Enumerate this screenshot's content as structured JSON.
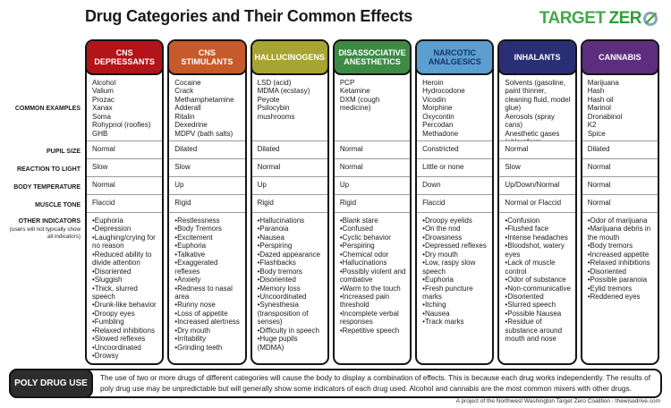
{
  "title": "Drug Categories and Their Common Effects",
  "logo": {
    "part1": "TARGET",
    "part2": "ZER",
    "icon": "target-zero-o-icon",
    "green": "#43a948"
  },
  "row_labels": {
    "examples": "COMMON EXAMPLES",
    "pupil": "PUPIL SIZE",
    "reaction": "REACTION TO LIGHT",
    "temperature": "BODY TEMPERATURE",
    "muscle": "MUSCLE TONE",
    "other": "OTHER INDICATORS",
    "other_note": "(users will not typically show all indicators)"
  },
  "columns": [
    {
      "name": "CNS DEPRESSANTS",
      "header_bg": "#b11419",
      "header_color": "#ffffff",
      "examples": [
        "Alcohol",
        "Valium",
        "Prozac",
        "Xanax",
        "Soma",
        "Rohypnol (roofies)",
        "GHB"
      ],
      "pupil": "Normal",
      "reaction": "Slow",
      "temperature": "Normal",
      "muscle": "Flaccid",
      "indicators": [
        "Euphoria",
        "Depression",
        "Laughing/crying for no reason",
        "Reduced ability to divide attention",
        "Disoriented",
        "Sluggish",
        "Thick, slurred speech",
        "Drunk-like behavior",
        "Droopy eyes",
        "Fumbling",
        "Relaxed inhibitions",
        "Slowed reflexes",
        "Uncoordinated",
        "Drowsy"
      ]
    },
    {
      "name": "CNS STIMULANTS",
      "header_bg": "#c65a2a",
      "header_color": "#ffffff",
      "examples": [
        "Cocaine",
        "Crack",
        "Methamphetamine",
        "Adderall",
        "Ritalin",
        "Dexedrine",
        "MDPV (bath salts)"
      ],
      "pupil": "Dilated",
      "reaction": "Slow",
      "temperature": "Up",
      "muscle": "Rigid",
      "indicators": [
        "Restlessness",
        "Body Tremors",
        "Excitement",
        "Euphoria",
        "Talkative",
        "Exaggerated reflexes",
        "Anxiety",
        "Redness to nasal area",
        "Runny nose",
        "Loss of appetite",
        "Increased alertness",
        "Dry mouth",
        "Irritability",
        "Grinding teeth"
      ]
    },
    {
      "name": "HALLUCINOGENS",
      "header_bg": "#a8a433",
      "header_color": "#ffffff",
      "examples": [
        "LSD (acid)",
        "MDMA (ecstasy)",
        "Peyote",
        "Psilocybin mushrooms"
      ],
      "pupil": "Dilated",
      "reaction": "Normal",
      "temperature": "Up",
      "muscle": "Rigid",
      "indicators": [
        "Hallucinations",
        "Paranoia",
        "Nausea",
        "Perspiring",
        "Dazed appearance",
        "Flashbacks",
        "Body tremors",
        "Disoriented",
        "Memory loss",
        "Uncoordinated",
        "Synesthesia (transposition of senses)",
        "Difficulty in speech",
        "Huge pupils (MDMA)"
      ]
    },
    {
      "name": "DISASSOCIATIVE ANESTHETICS",
      "header_bg": "#3e8a45",
      "header_color": "#ffffff",
      "examples": [
        "PCP",
        "Ketamine",
        "DXM (cough medicine)"
      ],
      "pupil": "Normal",
      "reaction": "Normal",
      "temperature": "Up",
      "muscle": "Rigid",
      "indicators": [
        "Blank stare",
        "Confused",
        "Cyclic behavior",
        "Perspiring",
        "Chemical odor",
        "Hallucinations",
        "Possibly violent and combative",
        "Warm to the touch",
        "Increased pain threshold",
        "Incomplete verbal responses",
        "Repetitive speech"
      ]
    },
    {
      "name": "NARCOTIC ANALGESICS",
      "header_bg": "#5b9ecf",
      "header_color": "#17356b",
      "examples": [
        "Heroin",
        "Hydrocodone",
        "Vicodin",
        "Morphine",
        "Oxycontin",
        "Percodan",
        "Methadone"
      ],
      "pupil": "Constricted",
      "reaction": "Little or none",
      "temperature": "Down",
      "muscle": "Flaccid",
      "indicators": [
        "Droopy eyelids",
        "On the nod",
        "Drowsiness",
        "Depressed reflexes",
        "Dry mouth",
        "Low, raspy slow speech",
        "Euphoria",
        "Fresh puncture marks",
        "Itching",
        "Nausea",
        "Track marks"
      ]
    },
    {
      "name": "INHALANTS",
      "header_bg": "#2a2e75",
      "header_color": "#ffffff",
      "examples": [
        "Solvents (gasoline, paint thinner, cleaning fluid, model glue)",
        "Aerosols (spray cans)",
        "Anesthetic gases (chloroform, whipped cream spray cans, nitrous oxide)"
      ],
      "pupil": "Normal",
      "reaction": "Slow",
      "temperature": "Up/Down/Normal",
      "muscle": "Normal or Flaccid",
      "indicators": [
        "Confusion",
        "Flushed face",
        "Intense headaches",
        "Bloodshot, watery eyes",
        "Lack of muscle control",
        "Odor of substance",
        "Non-communicative",
        "Disoriented",
        "Slurred speech",
        "Possible Nausea",
        "Residue of substance around mouth and nose"
      ]
    },
    {
      "name": "CANNABIS",
      "header_bg": "#5d2d7e",
      "header_color": "#ffffff",
      "examples": [
        "Marijuana",
        "Hash",
        "Hash oil",
        "Marinol",
        "Dronabinol",
        "K2",
        "Spice"
      ],
      "pupil": "Dilated",
      "reaction": "Normal",
      "temperature": "Normal",
      "muscle": "Normal",
      "indicators": [
        "Odor of marijuana",
        "Marijuana debris in the mouth",
        "Body tremors",
        "Increased appetite",
        "Relaxed inhibitions",
        "Disoriented",
        "Possible paranoia",
        "Eylid tremors",
        "Reddened eyes"
      ]
    }
  ],
  "poly": {
    "label": "POLY DRUG USE",
    "text": "The use of two or more drugs of different categories will cause the body to display a combination of effects. This is because each drug works independently. The results of poly drug use may be unpredictable but will generally show some indicators of each drug used. Alcohol and cannabis are the most common mixers with other drugs."
  },
  "footer": "A project of the Northwest Washington Target Zero Coalition - thewisedrive.com"
}
